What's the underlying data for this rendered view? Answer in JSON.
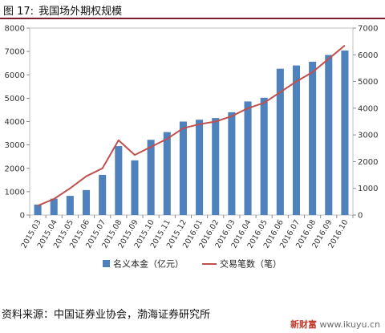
{
  "figure": {
    "label": "图 17:",
    "title": "我国场外期权规模"
  },
  "chart_data": {
    "type": "bar",
    "title": "",
    "xlabel": "",
    "categories": [
      "2015.03",
      "2015.04",
      "2015.05",
      "2015.06",
      "2015.07",
      "2015.08",
      "2015.09",
      "2015.10",
      "2015.11",
      "2015.12",
      "2016.01",
      "2016.02",
      "2016.03",
      "2016.04",
      "2016.05",
      "2016.06",
      "2016.07",
      "2016.08",
      "2016.09",
      "2016.10"
    ],
    "y_left": {
      "min": 0,
      "max": 8000,
      "step": 1000,
      "ticks": [
        "0",
        "1000",
        "2000",
        "3000",
        "4000",
        "5000",
        "6000",
        "7000",
        "8000"
      ]
    },
    "y_right": {
      "min": 0,
      "max": 7000,
      "step": 1000,
      "ticks": [
        "0",
        "1000",
        "2000",
        "3000",
        "4000",
        "5000",
        "6000",
        "7000"
      ]
    },
    "grid": false,
    "legend_position": "bottom",
    "series": [
      {
        "name": "名义本金（亿元）",
        "type": "bar",
        "axis": "left",
        "color": "#4f81bd",
        "values": [
          450,
          700,
          820,
          1070,
          1720,
          2950,
          2340,
          3220,
          3550,
          4000,
          4080,
          4150,
          4400,
          4860,
          5020,
          6260,
          6400,
          6560,
          6850,
          7040
        ]
      },
      {
        "name": "交易笔数（笔）",
        "type": "line",
        "axis": "right",
        "color": "#c0504d",
        "values": [
          350,
          600,
          1000,
          1450,
          1750,
          2800,
          2250,
          2550,
          2850,
          3250,
          3400,
          3500,
          3700,
          4000,
          4200,
          4600,
          5000,
          5350,
          5850,
          6350
        ]
      }
    ]
  },
  "source": "资料来源：中国证券业协会，渤海证券研究所",
  "watermark": {
    "brand": "新财富",
    "url": "www.ikuyu.cn"
  }
}
